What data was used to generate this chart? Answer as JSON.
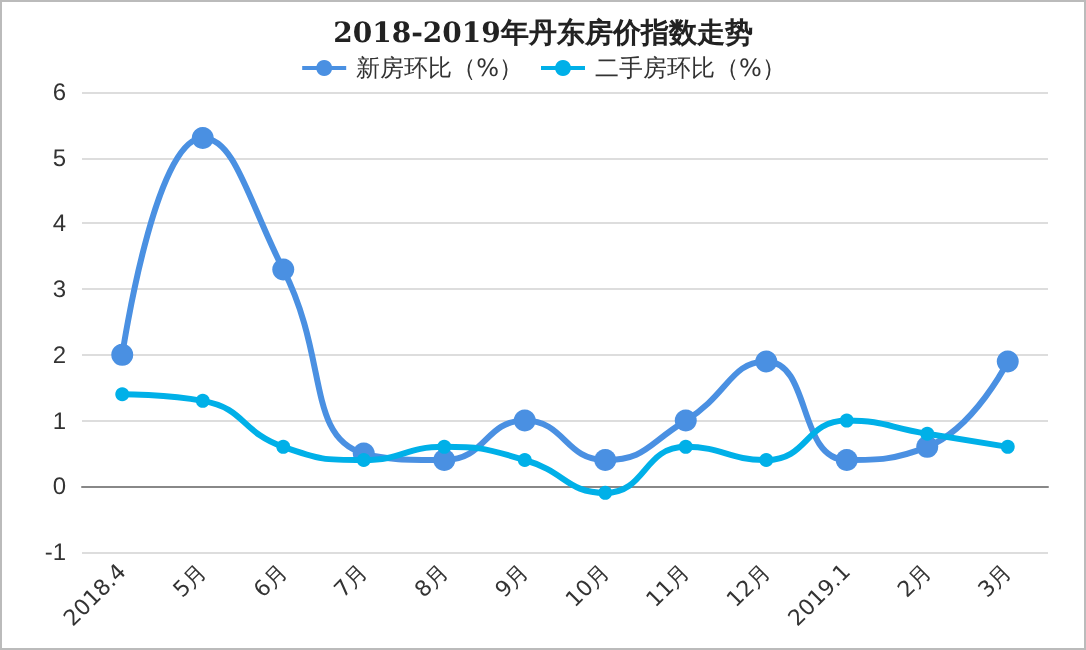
{
  "chart_data": {
    "type": "line",
    "title": "2018-2019年丹东房价指数走势",
    "categories": [
      "2018.4",
      "5月",
      "6月",
      "7月",
      "8月",
      "9月",
      "10月",
      "11月",
      "12月",
      "2019.1",
      "2月",
      "3月"
    ],
    "series": [
      {
        "name": "新房环比（%）",
        "color": "#4a90e2",
        "values": [
          2.0,
          5.3,
          3.3,
          0.5,
          0.4,
          1.0,
          0.4,
          1.0,
          1.9,
          0.4,
          0.6,
          1.9
        ]
      },
      {
        "name": "二手房环比（%）",
        "color": "#00b0e8",
        "values": [
          1.4,
          1.3,
          0.6,
          0.4,
          0.6,
          0.4,
          -0.1,
          0.6,
          0.4,
          1.0,
          0.8,
          0.6
        ]
      }
    ],
    "ylim": [
      -1,
      6
    ],
    "yticks": [
      -1,
      0,
      1,
      2,
      3,
      4,
      5,
      6
    ],
    "grid": "y",
    "legend": "top",
    "marker": "circle",
    "line_style": "solid"
  }
}
